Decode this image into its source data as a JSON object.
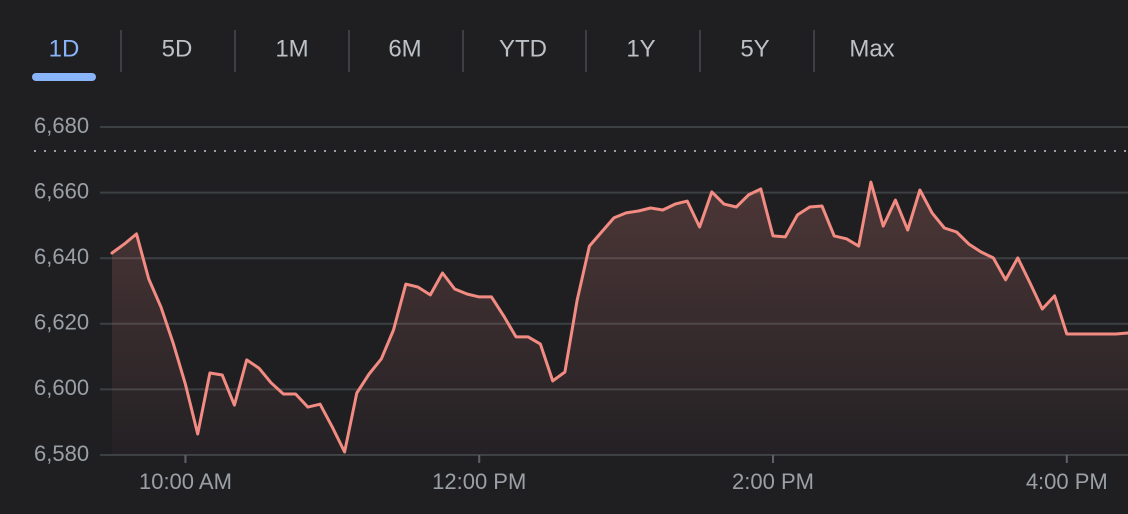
{
  "tabs": [
    "1D",
    "5D",
    "1M",
    "6M",
    "YTD",
    "1Y",
    "5Y",
    "Max"
  ],
  "selected_tab": 0,
  "chart_data": {
    "type": "line",
    "color": "#f28b82",
    "x": [
      570,
      575,
      580,
      585,
      590,
      595,
      600,
      605,
      610,
      615,
      620,
      625,
      630,
      635,
      640,
      645,
      650,
      655,
      660,
      665,
      670,
      675,
      680,
      685,
      690,
      695,
      700,
      705,
      710,
      715,
      720,
      725,
      730,
      735,
      740,
      745,
      750,
      755,
      760,
      765,
      770,
      775,
      780,
      785,
      790,
      795,
      800,
      805,
      810,
      815,
      820,
      825,
      830,
      835,
      840,
      845,
      850,
      855,
      860,
      865,
      870,
      875,
      880,
      885,
      890,
      895,
      900,
      905,
      910,
      915,
      920,
      925,
      930,
      935,
      940,
      945,
      950,
      955,
      960,
      965,
      970,
      975,
      980,
      985
    ],
    "values": [
      6641.6,
      6644.3,
      6647.4,
      6633.7,
      6625.1,
      6614.1,
      6601.6,
      6586.4,
      6605.0,
      6604.4,
      6595.2,
      6609.0,
      6606.5,
      6602.0,
      6598.6,
      6598.6,
      6594.6,
      6595.5,
      6588.5,
      6580.9,
      6598.9,
      6604.7,
      6609.3,
      6618.1,
      6632.1,
      6631.2,
      6628.8,
      6635.5,
      6630.6,
      6629.1,
      6628.2,
      6628.2,
      6622.4,
      6616.0,
      6616.0,
      6613.8,
      6602.6,
      6605.3,
      6627.3,
      6643.7,
      6648.0,
      6652.3,
      6653.8,
      6654.4,
      6655.3,
      6654.7,
      6656.5,
      6657.4,
      6649.5,
      6660.2,
      6656.5,
      6655.6,
      6659.3,
      6661.1,
      6646.8,
      6646.5,
      6653.2,
      6655.6,
      6655.9,
      6646.8,
      6645.9,
      6643.7,
      6663.2,
      6649.8,
      6657.7,
      6648.6,
      6660.8,
      6653.8,
      6649.2,
      6648.0,
      6644.3,
      6641.9,
      6640.1,
      6633.4,
      6640.1,
      6632.4,
      6624.5,
      6628.5,
      6616.9,
      6616.9,
      6616.9,
      6616.9,
      6616.9,
      6617.2
    ],
    "xlim": [
      570,
      985
    ],
    "xticks": [
      {
        "value": 600,
        "label": "10:00 AM"
      },
      {
        "value": 720,
        "label": "12:00 PM"
      },
      {
        "value": 840,
        "label": "2:00 PM"
      },
      {
        "value": 960,
        "label": "4:00 PM"
      }
    ],
    "ylim": [
      6580,
      6680
    ],
    "yticks": [
      {
        "value": 6580,
        "label": "6,580"
      },
      {
        "value": 6600,
        "label": "6,600"
      },
      {
        "value": 6620,
        "label": "6,620"
      },
      {
        "value": 6640,
        "label": "6,640"
      },
      {
        "value": 6660,
        "label": "6,660"
      },
      {
        "value": 6680,
        "label": "6,680"
      }
    ],
    "reference_line": 6672.7,
    "grid": true
  }
}
